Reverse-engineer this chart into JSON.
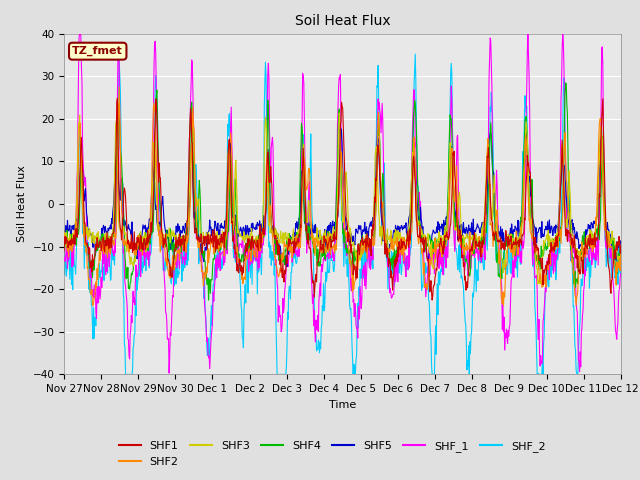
{
  "title": "Soil Heat Flux",
  "xlabel": "Time",
  "ylabel": "Soil Heat Flux",
  "ylim": [
    -40,
    40
  ],
  "yticks": [
    -40,
    -30,
    -20,
    -10,
    0,
    10,
    20,
    30,
    40
  ],
  "x_labels": [
    "Nov 27",
    "Nov 28",
    "Nov 29",
    "Nov 30",
    "Dec 1",
    "Dec 2",
    "Dec 3",
    "Dec 4",
    "Dec 5",
    "Dec 6",
    "Dec 7",
    "Dec 8",
    "Dec 9",
    "Dec 10",
    "Dec 11",
    "Dec 12"
  ],
  "series_colors": {
    "SHF1": "#cc0000",
    "SHF2": "#ff8800",
    "SHF3": "#cccc00",
    "SHF4": "#00bb00",
    "SHF5": "#0000cc",
    "SHF_1": "#ff00ff",
    "SHF_2": "#00ccff"
  },
  "annotation_text": "TZ_fmet",
  "annotation_color": "#8b0000",
  "annotation_bg": "#ffffcc",
  "background_color": "#e0e0e0",
  "plot_bg_color": "#e8e8e8",
  "n_points": 960,
  "days": 15,
  "seed": 99
}
